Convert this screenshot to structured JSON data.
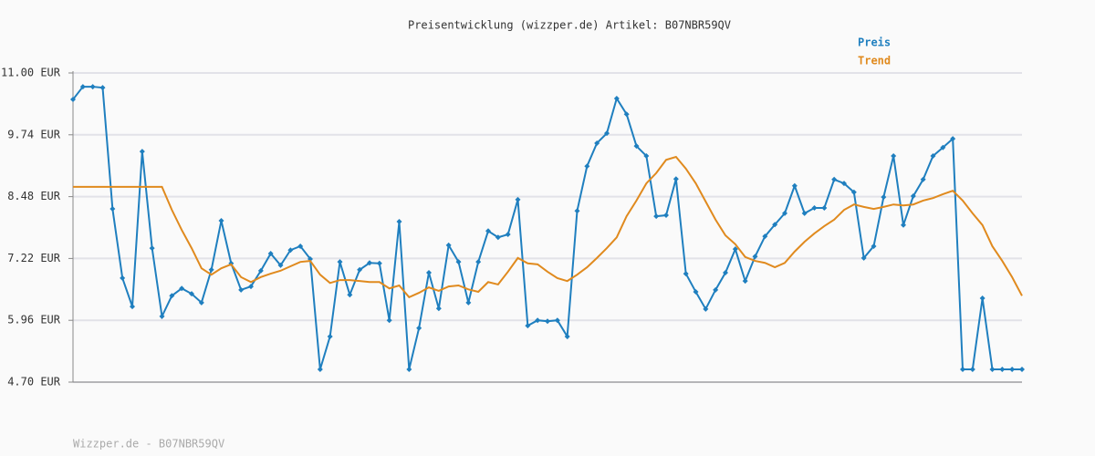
{
  "chart_data": {
    "type": "line",
    "title": "Preisentwicklung (wizzper.de) Artikel: B07NBR59QV",
    "footer": "Wizzper.de - B07NBR59QV",
    "ylim": [
      4.7,
      11.0
    ],
    "yticks": [
      {
        "value": 4.7,
        "label": "4.70 EUR"
      },
      {
        "value": 5.96,
        "label": "5.96 EUR"
      },
      {
        "value": 7.22,
        "label": "7.22 EUR"
      },
      {
        "value": 8.48,
        "label": "8.48 EUR"
      },
      {
        "value": 9.74,
        "label": "9.74 EUR"
      },
      {
        "value": 11.0,
        "label": "11.00 EUR"
      }
    ],
    "grid": true,
    "series": [
      {
        "name": "Preis",
        "color": "#1f7fbf",
        "markers": true,
        "values": [
          10.46,
          10.72,
          10.72,
          10.7,
          8.23,
          6.82,
          6.24,
          9.4,
          7.43,
          6.04,
          6.46,
          6.61,
          6.5,
          6.32,
          6.99,
          7.99,
          7.12,
          6.58,
          6.65,
          6.97,
          7.32,
          7.08,
          7.39,
          7.47,
          7.21,
          4.96,
          5.63,
          7.15,
          6.48,
          6.99,
          7.13,
          7.12,
          5.96,
          7.97,
          4.96,
          5.8,
          6.93,
          6.2,
          7.49,
          7.15,
          6.32,
          7.15,
          7.78,
          7.65,
          7.71,
          8.42,
          5.85,
          5.96,
          5.94,
          5.96,
          5.63,
          8.19,
          9.1,
          9.57,
          9.77,
          10.48,
          10.16,
          9.51,
          9.31,
          8.08,
          8.1,
          8.84,
          6.91,
          6.54,
          6.19,
          6.58,
          6.93,
          7.41,
          6.76,
          7.26,
          7.67,
          7.91,
          8.14,
          8.7,
          8.14,
          8.25,
          8.25,
          8.83,
          8.75,
          8.57,
          7.23,
          7.47,
          8.47,
          9.31,
          7.9,
          8.49,
          8.83,
          9.31,
          9.48,
          9.66,
          4.96,
          4.96,
          6.41,
          4.96,
          4.96,
          4.96,
          4.96
        ]
      },
      {
        "name": "Trend",
        "color": "#e08a1e",
        "markers": false,
        "values": [
          8.68,
          8.68,
          8.68,
          8.68,
          8.68,
          8.68,
          8.68,
          8.68,
          8.68,
          8.68,
          8.21,
          7.8,
          7.43,
          7.02,
          6.89,
          7.02,
          7.1,
          6.84,
          6.74,
          6.84,
          6.91,
          6.97,
          7.06,
          7.15,
          7.17,
          6.89,
          6.72,
          6.78,
          6.78,
          6.76,
          6.74,
          6.74,
          6.61,
          6.67,
          6.43,
          6.52,
          6.63,
          6.56,
          6.65,
          6.67,
          6.59,
          6.54,
          6.74,
          6.69,
          6.95,
          7.23,
          7.12,
          7.1,
          6.95,
          6.82,
          6.76,
          6.89,
          7.04,
          7.23,
          7.43,
          7.65,
          8.08,
          8.4,
          8.75,
          8.96,
          9.23,
          9.29,
          9.05,
          8.75,
          8.38,
          8.01,
          7.69,
          7.51,
          7.25,
          7.17,
          7.13,
          7.04,
          7.13,
          7.36,
          7.56,
          7.73,
          7.88,
          8.01,
          8.21,
          8.32,
          8.27,
          8.23,
          8.27,
          8.32,
          8.3,
          8.32,
          8.4,
          8.45,
          8.53,
          8.6,
          8.4,
          8.14,
          7.9,
          7.47,
          7.17,
          6.84,
          6.46
        ]
      }
    ]
  }
}
